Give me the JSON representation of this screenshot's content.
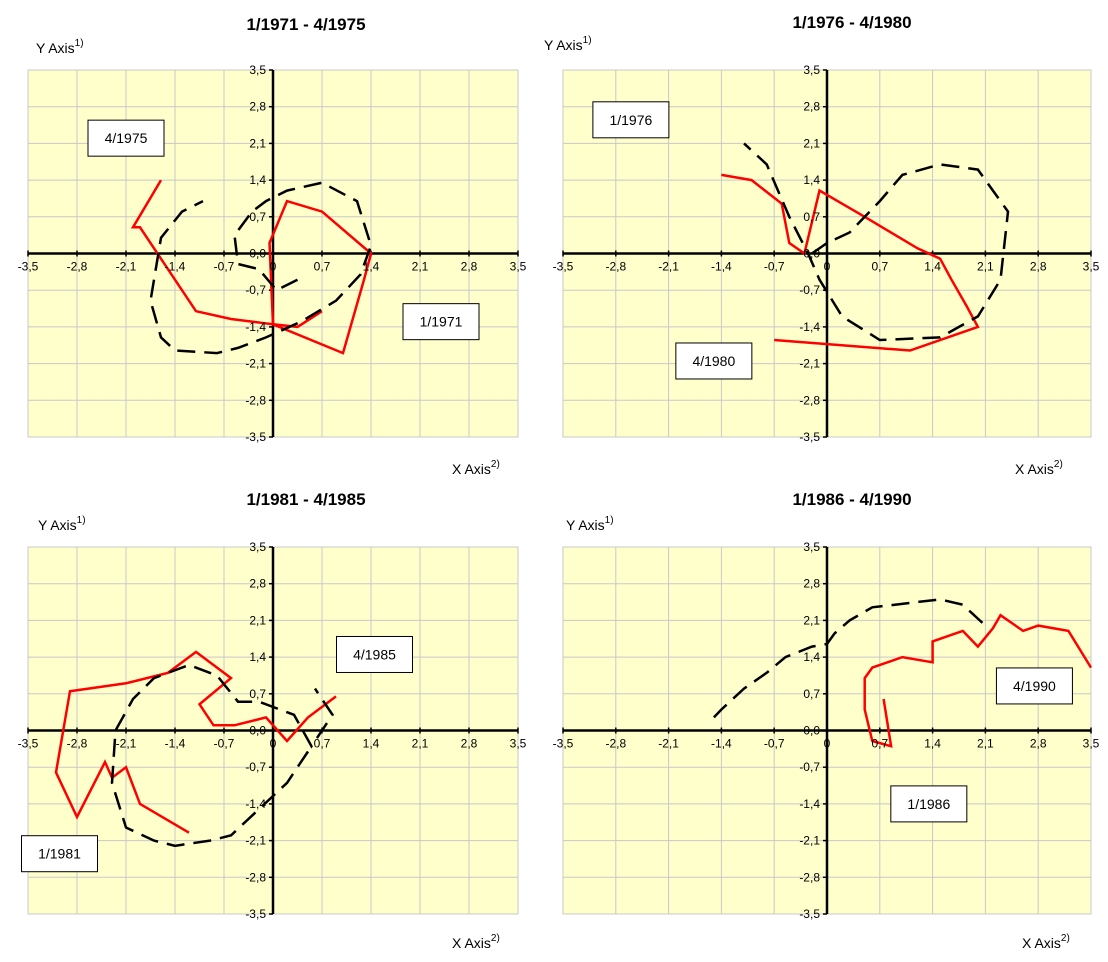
{
  "chart_data": [
    {
      "type": "line",
      "title": "1/1971 - 4/1975",
      "xlabel": "X Axis",
      "xlabel_sup": "2)",
      "ylabel": "Y Axis",
      "ylabel_sup": "1)",
      "xlim": [
        -3.5,
        3.5
      ],
      "ylim": [
        -3.5,
        3.5
      ],
      "xticks": [
        "-3,5",
        "-2,8",
        "-2,1",
        "-1,4",
        "-0,7",
        "0",
        "0,7",
        "1,4",
        "2,1",
        "2,8",
        "3,5"
      ],
      "yticks": [
        "3,5",
        "2,8",
        "2,1",
        "1,4",
        "0,7",
        "0,0",
        "-0,7",
        "-1,4",
        "-2,1",
        "-2,8",
        "-3,5"
      ],
      "grid": true,
      "background": "#ffffcc",
      "series": [
        {
          "style": "solid",
          "color": "#ff0000",
          "x": [
            0.7,
            0.35,
            0.0,
            -0.05,
            0.2,
            0.7,
            1.4,
            1.3,
            1.0,
            0.0,
            -0.6,
            -1.1,
            -1.9,
            -2.0,
            -1.6
          ],
          "y": [
            -1.1,
            -1.4,
            -1.35,
            0.2,
            1.0,
            0.8,
            0.0,
            -0.5,
            -1.9,
            -1.35,
            -1.25,
            -1.1,
            0.5,
            0.5,
            1.4
          ]
        },
        {
          "style": "dashed",
          "color": "#000000",
          "x": [
            0.35,
            0.05,
            -0.2,
            -0.5,
            -0.55,
            -0.3,
            -0.1,
            0.2,
            0.7,
            1.2,
            1.4,
            1.25,
            0.9,
            0.4,
            -0.1,
            -0.5,
            -0.8,
            -1.4,
            -1.6,
            -1.75,
            -1.6,
            -1.3,
            -1.0
          ],
          "y": [
            -0.5,
            -0.7,
            -0.3,
            -0.2,
            0.35,
            0.8,
            1.0,
            1.2,
            1.35,
            1.0,
            0.15,
            -0.4,
            -0.9,
            -1.3,
            -1.6,
            -1.8,
            -1.9,
            -1.85,
            -1.6,
            -0.9,
            0.3,
            0.8,
            1.0
          ]
        }
      ],
      "annotations": [
        {
          "text": "4/1975",
          "x": -2.1,
          "y": 2.2
        },
        {
          "text": "1/1971",
          "x": 2.4,
          "y": -1.3
        }
      ]
    },
    {
      "type": "line",
      "title": "1/1976 - 4/1980",
      "xlabel": "X Axis",
      "xlabel_sup": "2)",
      "ylabel": "Y Axis",
      "ylabel_sup": "1)",
      "xlim": [
        -3.5,
        3.5
      ],
      "ylim": [
        -3.5,
        3.5
      ],
      "xticks": [
        "-3,5",
        "-2,8",
        "-2,1",
        "-1,4",
        "-0,7",
        "0",
        "0,7",
        "1,4",
        "2,1",
        "2,8",
        "3,5"
      ],
      "yticks": [
        "3,5",
        "2,8",
        "2,1",
        "1,4",
        "0,7",
        "0,0",
        "-0,7",
        "-1,4",
        "-2,1",
        "-2,8",
        "-3,5"
      ],
      "grid": true,
      "background": "#ffffcc",
      "series": [
        {
          "style": "solid",
          "color": "#ff0000",
          "x": [
            -1.4,
            -1.0,
            -0.6,
            -0.5,
            -0.3,
            -0.1,
            0.5,
            1.2,
            1.5,
            1.65,
            1.85,
            2.0,
            1.1,
            -0.7
          ],
          "y": [
            1.5,
            1.4,
            0.95,
            0.2,
            0.0,
            1.2,
            0.7,
            0.1,
            -0.1,
            -0.5,
            -1.0,
            -1.4,
            -1.85,
            -1.65
          ]
        },
        {
          "style": "dashed",
          "color": "#000000",
          "x": [
            -0.2,
            0.0,
            0.3,
            0.7,
            1.0,
            1.5,
            2.0,
            2.4,
            2.3,
            2.0,
            1.5,
            0.7,
            0.2,
            -0.1,
            -0.25,
            -0.5,
            -0.8,
            -1.1
          ],
          "y": [
            0.0,
            0.2,
            0.4,
            1.0,
            1.5,
            1.7,
            1.6,
            0.8,
            -0.5,
            -1.2,
            -1.6,
            -1.65,
            -1.2,
            -0.5,
            0.0,
            0.7,
            1.7,
            2.1
          ]
        }
      ],
      "annotations": [
        {
          "text": "1/1976",
          "x": -2.6,
          "y": 2.55
        },
        {
          "text": "4/1980",
          "x": -1.5,
          "y": -2.05
        }
      ]
    },
    {
      "type": "line",
      "title": "1/1981 - 4/1985",
      "xlabel": "X Axis",
      "xlabel_sup": "2)",
      "ylabel": "Y Axis",
      "ylabel_sup": "1)",
      "xlim": [
        -3.5,
        3.5
      ],
      "ylim": [
        -3.5,
        3.5
      ],
      "xticks": [
        "-3,5",
        "-2,8",
        "-2,1",
        "-1,4",
        "-0,7",
        "0",
        "0,7",
        "1,4",
        "2,1",
        "2,8",
        "3,5"
      ],
      "yticks": [
        "3,5",
        "2,8",
        "2,1",
        "1,4",
        "0,7",
        "0,0",
        "-0,7",
        "-1,4",
        "-2,1",
        "-2,8",
        "-3,5"
      ],
      "grid": true,
      "background": "#ffffcc",
      "series": [
        {
          "style": "solid",
          "color": "#ff0000",
          "x": [
            -1.2,
            -1.9,
            -2.1,
            -2.3,
            -2.4,
            -2.8,
            -3.1,
            -2.9,
            -2.1,
            -1.5,
            -1.1,
            -0.6,
            -1.05,
            -0.85,
            -0.55,
            -0.1,
            0.2,
            0.5,
            0.9
          ],
          "y": [
            -1.95,
            -1.4,
            -0.7,
            -0.9,
            -0.6,
            -1.65,
            -0.8,
            0.75,
            0.9,
            1.1,
            1.5,
            1.0,
            0.5,
            0.1,
            0.1,
            0.25,
            -0.2,
            0.25,
            0.65
          ]
        },
        {
          "style": "dashed",
          "color": "#000000",
          "x": [
            0.5,
            0.2,
            -0.2,
            -0.6,
            -0.9,
            -1.4,
            -1.7,
            -2.1,
            -2.3,
            -2.25,
            -2.0,
            -1.7,
            -1.2,
            -0.8,
            -0.5,
            -0.2,
            0.3,
            0.55,
            0.85,
            0.6
          ],
          "y": [
            -0.4,
            -1.0,
            -1.5,
            -2.0,
            -2.1,
            -2.2,
            -2.1,
            -1.85,
            -1.0,
            0.0,
            0.6,
            1.0,
            1.25,
            1.05,
            0.55,
            0.55,
            0.3,
            -0.3,
            0.3,
            0.8
          ]
        }
      ],
      "annotations": [
        {
          "text": "4/1985",
          "x": 1.45,
          "y": 1.45
        },
        {
          "text": "1/1981",
          "x": -3.05,
          "y": -2.35
        }
      ]
    },
    {
      "type": "line",
      "title": "1/1986 - 4/1990",
      "xlabel": "X Axis",
      "xlabel_sup": "2)",
      "ylabel": "Y Axis",
      "ylabel_sup": "1)",
      "xlim": [
        -3.5,
        3.5
      ],
      "ylim": [
        -3.5,
        3.5
      ],
      "xticks": [
        "-3,5",
        "-2,8",
        "-2,1",
        "-1,4",
        "-0,7",
        "0",
        "0,7",
        "1,4",
        "2,1",
        "2,8",
        "3,5"
      ],
      "yticks": [
        "3,5",
        "2,8",
        "2,1",
        "1,4",
        "0,7",
        "0,0",
        "-0,7",
        "-1,4",
        "-2,1",
        "-2,8",
        "-3,5"
      ],
      "grid": true,
      "background": "#ffffcc",
      "series": [
        {
          "style": "solid",
          "color": "#ff0000",
          "x": [
            0.75,
            0.85,
            0.6,
            0.5,
            0.5,
            0.6,
            1.0,
            1.4,
            1.4,
            1.8,
            2.0,
            2.2,
            2.3,
            2.6,
            2.8,
            3.2,
            3.5
          ],
          "y": [
            0.6,
            -0.3,
            -0.2,
            0.4,
            1.0,
            1.2,
            1.4,
            1.3,
            1.7,
            1.9,
            1.6,
            1.95,
            2.2,
            1.9,
            2.0,
            1.9,
            1.2
          ]
        },
        {
          "style": "dashed",
          "color": "#000000",
          "x": [
            -1.5,
            -1.4,
            -1.1,
            -0.8,
            -0.55,
            -0.2,
            0.0,
            0.1,
            0.3,
            0.6,
            0.9,
            1.2,
            1.5,
            1.8,
            2.1
          ],
          "y": [
            0.25,
            0.4,
            0.8,
            1.1,
            1.4,
            1.6,
            1.65,
            1.85,
            2.1,
            2.35,
            2.4,
            2.45,
            2.5,
            2.4,
            2.0
          ]
        }
      ],
      "annotations": [
        {
          "text": "4/1990",
          "x": 2.75,
          "y": 0.85
        },
        {
          "text": "1/1986",
          "x": 1.35,
          "y": -1.4
        }
      ]
    }
  ]
}
